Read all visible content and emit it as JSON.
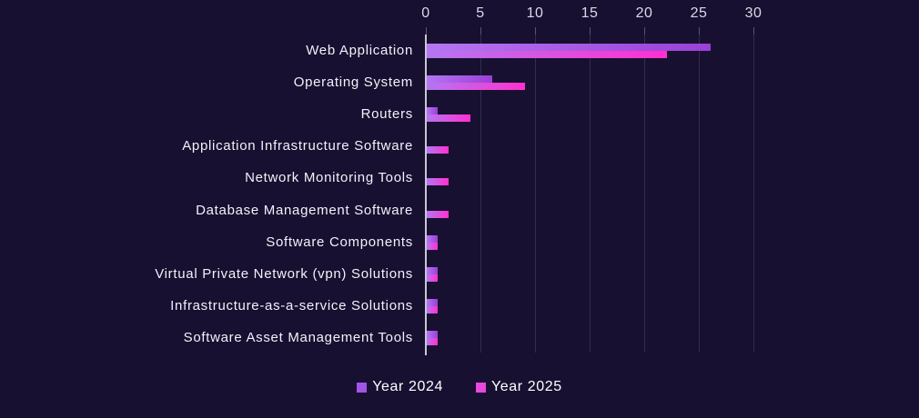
{
  "figure": {
    "background_color": "#171031",
    "title": ""
  },
  "chart_data": {
    "type": "bar",
    "orientation": "horizontal",
    "title": "",
    "xlabel": "",
    "ylabel": "",
    "grid": true,
    "legend_position": "bottom",
    "xlim": [
      0,
      30
    ],
    "x_ticks": [
      0,
      5,
      10,
      15,
      20,
      25,
      30
    ],
    "categories": [
      "Web Application",
      "Operating System",
      "Routers",
      "Application Infrastructure Software",
      "Network Monitoring Tools",
      "Database Management Software",
      "Software Components",
      "Virtual Private Network (vpn) Solutions",
      "Infrastructure-as-a-service Solutions",
      "Software Asset Management Tools"
    ],
    "series": [
      {
        "name": "Year 2024",
        "values": [
          26,
          6,
          1,
          0,
          0,
          0,
          1,
          1,
          1,
          1
        ],
        "gradient_start": "#b476f2",
        "gradient_end": "#9a40d8",
        "legend_color": "#a254e8"
      },
      {
        "name": "Year 2025",
        "values": [
          22,
          9,
          4,
          2,
          2,
          2,
          1,
          1,
          1,
          1
        ],
        "gradient_start": "#b476f2",
        "gradient_end": "#ff30cf",
        "legend_color": "#e748dd"
      }
    ]
  },
  "style": {
    "axis_line_color": "#c9c6d4",
    "gridline_color": "#332c52",
    "tick_label_color": "#dcd9e6",
    "category_label_color": "#f3f1f8",
    "legend_text_color": "#ffffff"
  }
}
